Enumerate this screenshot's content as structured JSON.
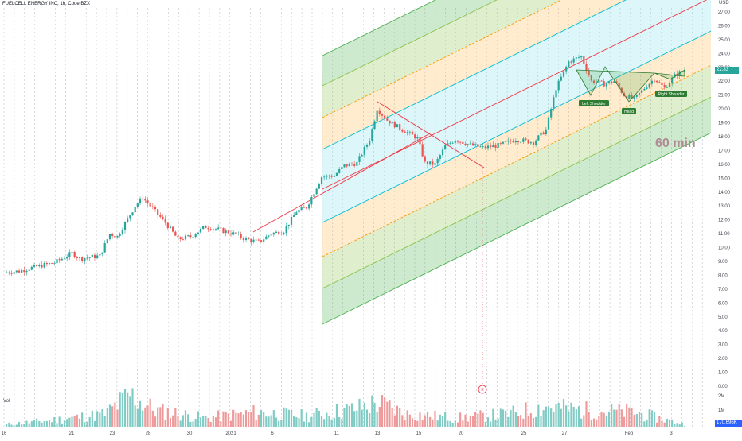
{
  "header": {
    "title": "FUELCELL ENERGY INC, 1h, Cboe BZX",
    "currency": "USD",
    "volume_label": "Vol",
    "timeframe_watermark": "60 min"
  },
  "badges": {
    "last_price": "22.83",
    "last_volume": "170.696K",
    "earnings_marker": "E"
  },
  "colors": {
    "up": "#26a69a",
    "down": "#ef5350",
    "pitchfork_median": "#f23645",
    "band_green": "#4caf50",
    "band_cyan": "#00bcd4",
    "band_orange": "#ff9800",
    "vol_up": "#80cbc4",
    "vol_down": "#ef9a9a"
  },
  "patterns": {
    "left_shoulder": "Left Shoulder",
    "head": "Head",
    "right_shoulder": "Right Shoulder"
  },
  "chart_data": {
    "type": "candlestick",
    "y_ticks": [
      0.0,
      1.0,
      2.0,
      3.0,
      4.0,
      5.0,
      6.0,
      7.0,
      8.0,
      9.0,
      10.0,
      11.0,
      12.0,
      13.0,
      14.0,
      15.0,
      16.0,
      17.0,
      18.0,
      19.0,
      20.0,
      21.0,
      22.0,
      23.0,
      24.0,
      25.0,
      26.0,
      27.0
    ],
    "ylim": [
      -0.5,
      27.5
    ],
    "vol_ticks": [
      "2M",
      "1M"
    ],
    "x_ticks": [
      "16",
      "21",
      "23",
      "28",
      "30",
      "2021",
      "6",
      "11",
      "13",
      "15",
      "20",
      "25",
      "27",
      "Feb",
      "3"
    ],
    "close_path": [
      [
        0,
        8.2
      ],
      [
        6,
        8.3
      ],
      [
        12,
        8.6
      ],
      [
        20,
        8.9
      ],
      [
        27,
        9.6
      ],
      [
        30,
        9.2
      ],
      [
        38,
        9.4
      ],
      [
        42,
        11.0
      ],
      [
        45,
        10.8
      ],
      [
        52,
        13.0
      ],
      [
        55,
        13.6
      ],
      [
        60,
        12.6
      ],
      [
        64,
        11.8
      ],
      [
        69,
        10.6
      ],
      [
        74,
        10.8
      ],
      [
        80,
        11.5
      ],
      [
        85,
        11.3
      ],
      [
        91,
        11.0
      ],
      [
        96,
        10.6
      ],
      [
        101,
        10.4
      ],
      [
        106,
        11.0
      ],
      [
        111,
        11.2
      ],
      [
        116,
        12.6
      ],
      [
        120,
        12.9
      ],
      [
        126,
        15.1
      ],
      [
        131,
        15.2
      ],
      [
        135,
        15.9
      ],
      [
        140,
        16.1
      ],
      [
        145,
        17.8
      ],
      [
        148,
        20.0
      ],
      [
        152,
        19.2
      ],
      [
        158,
        18.5
      ],
      [
        164,
        17.9
      ],
      [
        167,
        16.1
      ],
      [
        171,
        16.0
      ],
      [
        175,
        17.3
      ],
      [
        179,
        17.8
      ],
      [
        185,
        17.4
      ],
      [
        190,
        17.2
      ],
      [
        197,
        17.4
      ],
      [
        203,
        17.8
      ],
      [
        210,
        17.6
      ],
      [
        215,
        18.5
      ],
      [
        219,
        21.5
      ],
      [
        224,
        23.4
      ],
      [
        229,
        23.8
      ],
      [
        233,
        22.0
      ],
      [
        238,
        21.8
      ],
      [
        242,
        22.0
      ],
      [
        246,
        21.0
      ],
      [
        250,
        20.7
      ],
      [
        254,
        21.5
      ],
      [
        258,
        22.2
      ],
      [
        262,
        21.5
      ],
      [
        266,
        22.4
      ],
      [
        270,
        22.83
      ]
    ],
    "volume_path": [
      [
        0,
        0.15
      ],
      [
        20,
        0.4
      ],
      [
        40,
        0.7
      ],
      [
        50,
        1.7
      ],
      [
        60,
        0.9
      ],
      [
        80,
        0.5
      ],
      [
        100,
        0.8
      ],
      [
        120,
        0.6
      ],
      [
        140,
        1.0
      ],
      [
        148,
        1.3
      ],
      [
        160,
        0.7
      ],
      [
        180,
        0.5
      ],
      [
        200,
        0.7
      ],
      [
        215,
        1.1
      ],
      [
        230,
        0.9
      ],
      [
        250,
        0.8
      ],
      [
        270,
        0.17
      ]
    ]
  }
}
